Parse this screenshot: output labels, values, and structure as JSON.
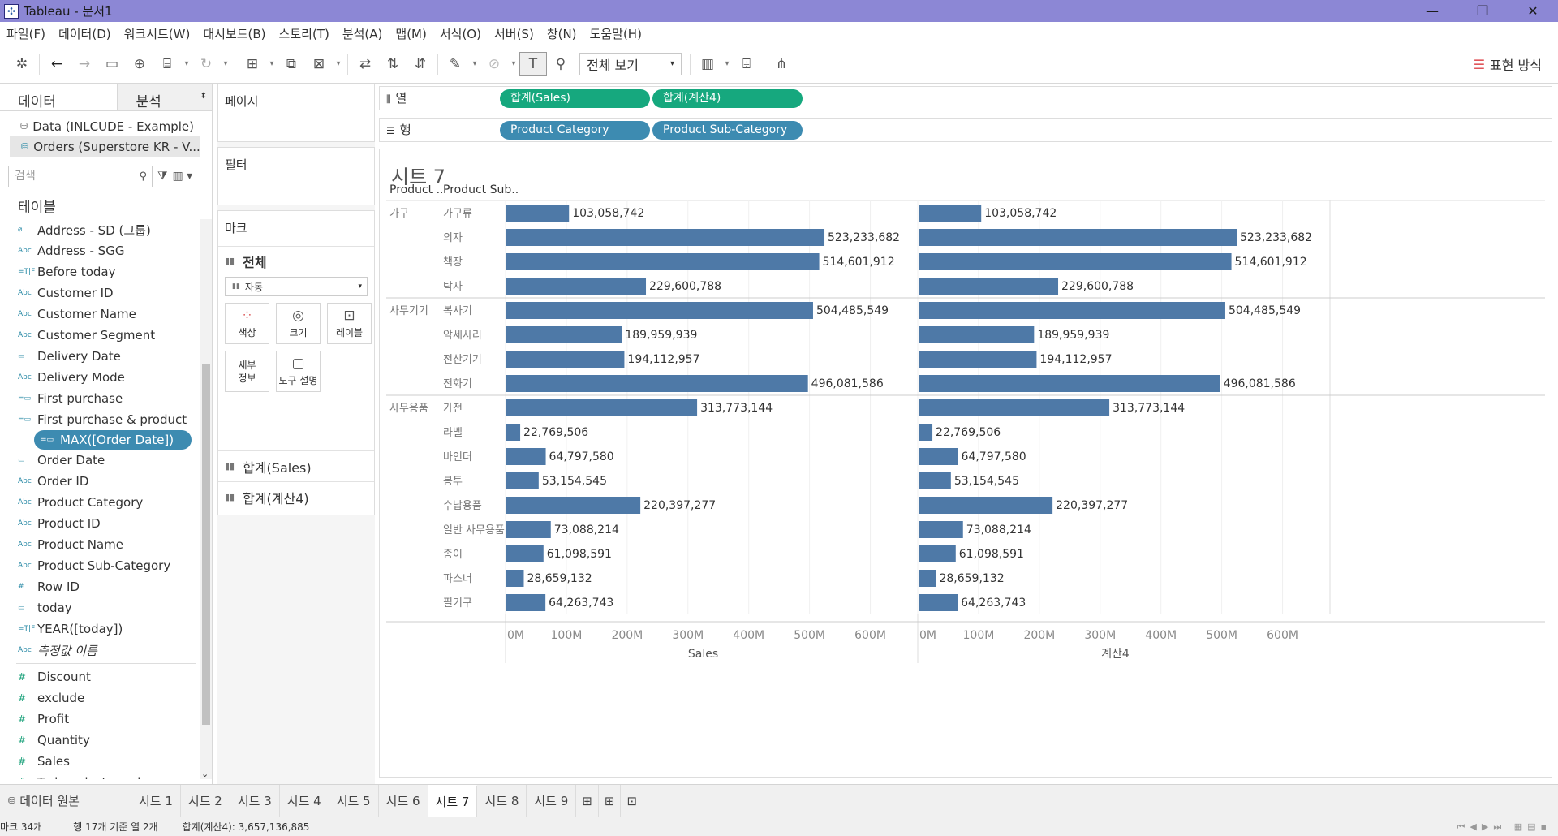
{
  "window": {
    "title": "Tableau - 문서1",
    "controls": [
      "—",
      "❐",
      "✕"
    ]
  },
  "menu": [
    "파일(F)",
    "데이터(D)",
    "워크시트(W)",
    "대시보드(B)",
    "스토리(T)",
    "분석(A)",
    "맵(M)",
    "서식(O)",
    "서버(S)",
    "창(N)",
    "도움말(H)"
  ],
  "toolbar": {
    "view_select": "전체 보기",
    "show_me": "표현 방식"
  },
  "data_pane": {
    "tab_data": "데이터",
    "tab_analysis": "분석",
    "sources": [
      "Data (INLCUDE - Example)",
      "Orders (Superstore KR - V..."
    ],
    "search_placeholder": "검색",
    "tables_label": "테이블",
    "dimensions": [
      {
        "type": "group",
        "name": "Address - SD (그룹)"
      },
      {
        "type": "abc",
        "name": "Address - SGG"
      },
      {
        "type": "bool",
        "name": "Before today"
      },
      {
        "type": "abc",
        "name": "Customer ID"
      },
      {
        "type": "abc",
        "name": "Customer Name"
      },
      {
        "type": "abc",
        "name": "Customer Segment"
      },
      {
        "type": "date",
        "name": "Delivery Date"
      },
      {
        "type": "abc",
        "name": "Delivery Mode"
      },
      {
        "type": "calc",
        "name": "First purchase"
      },
      {
        "type": "calc",
        "name": "First purchase & product"
      },
      {
        "type": "calc",
        "name": "MAX([Order Date])",
        "highlight": true
      },
      {
        "type": "date",
        "name": "Order Date"
      },
      {
        "type": "abc",
        "name": "Order ID"
      },
      {
        "type": "abc",
        "name": "Product Category"
      },
      {
        "type": "abc",
        "name": "Product ID"
      },
      {
        "type": "abc",
        "name": "Product Name"
      },
      {
        "type": "abc",
        "name": "Product Sub-Category"
      },
      {
        "type": "num",
        "name": "Row ID"
      },
      {
        "type": "date",
        "name": "today"
      },
      {
        "type": "bool",
        "name": "YEAR([today])"
      },
      {
        "type": "abc",
        "name": "측정값 이름",
        "italic": true
      }
    ],
    "measures": [
      "Discount",
      "exclude",
      "Profit",
      "Quantity",
      "Sales",
      "Today - last purchase"
    ]
  },
  "pages_label": "페이지",
  "filters_label": "필터",
  "marks": {
    "label": "마크",
    "all": "전체",
    "type": "자동",
    "buttons": [
      "색상",
      "크기",
      "레이블",
      "세부\n정보",
      "도구 설명"
    ],
    "cards": [
      "합계(Sales)",
      "합계(계산4)"
    ]
  },
  "shelves": {
    "columns_label": "열",
    "rows_label": "행",
    "columns": [
      "합계(Sales)",
      "합계(계산4)"
    ],
    "rows": [
      "Product Category",
      "Product Sub-Category"
    ]
  },
  "sheet": {
    "title": "시트 7",
    "col_header_1": "Product ..",
    "col_header_2": "Product Sub.."
  },
  "chart_data": {
    "type": "bar",
    "orientation": "horizontal",
    "groups": [
      {
        "category": "가구",
        "items": [
          {
            "sub": "가구류",
            "value": 103058742,
            "label": "103,058,742"
          },
          {
            "sub": "의자",
            "value": 523233682,
            "label": "523,233,682"
          },
          {
            "sub": "책장",
            "value": 514601912,
            "label": "514,601,912"
          },
          {
            "sub": "탁자",
            "value": 229600788,
            "label": "229,600,788"
          }
        ]
      },
      {
        "category": "사무기기",
        "items": [
          {
            "sub": "복사기",
            "value": 504485549,
            "label": "504,485,549"
          },
          {
            "sub": "악세사리",
            "value": 189959939,
            "label": "189,959,939"
          },
          {
            "sub": "전산기기",
            "value": 194112957,
            "label": "194,112,957"
          },
          {
            "sub": "전화기",
            "value": 496081586,
            "label": "496,081,586"
          }
        ]
      },
      {
        "category": "사무용품",
        "items": [
          {
            "sub": "가전",
            "value": 313773144,
            "label": "313,773,144"
          },
          {
            "sub": "라벨",
            "value": 22769506,
            "label": "22,769,506"
          },
          {
            "sub": "바인더",
            "value": 64797580,
            "label": "64,797,580"
          },
          {
            "sub": "봉투",
            "value": 53154545,
            "label": "53,154,545"
          },
          {
            "sub": "수납용품",
            "value": 220397277,
            "label": "220,397,277"
          },
          {
            "sub": "일반 사무용품",
            "value": 73088214,
            "label": "73,088,214"
          },
          {
            "sub": "종이",
            "value": 61098591,
            "label": "61,098,591"
          },
          {
            "sub": "파스너",
            "value": 28659132,
            "label": "28,659,132"
          },
          {
            "sub": "필기구",
            "value": 64263743,
            "label": "64,263,743"
          }
        ]
      }
    ],
    "panels": [
      {
        "xlabel": "Sales"
      },
      {
        "xlabel": "계산4"
      }
    ],
    "xlim": [
      0,
      650000000
    ],
    "ticks": [
      {
        "v": 0,
        "t": "0M"
      },
      {
        "v": 100000000,
        "t": "100M"
      },
      {
        "v": 200000000,
        "t": "200M"
      },
      {
        "v": 300000000,
        "t": "300M"
      },
      {
        "v": 400000000,
        "t": "400M"
      },
      {
        "v": 500000000,
        "t": "500M"
      },
      {
        "v": 600000000,
        "t": "600M"
      }
    ],
    "bar_color": "#4e79a7",
    "grid": true
  },
  "sheet_tabs": {
    "source": "데이터 원본",
    "sheets": [
      "시트 1",
      "시트 2",
      "시트 3",
      "시트 4",
      "시트 5",
      "시트 6",
      "시트 7",
      "시트 8",
      "시트 9"
    ],
    "active": "시트 7"
  },
  "status": {
    "marks": "마크 34개",
    "rows_cols": "행 17개 기준 열 2개",
    "sum": "합계(계산4): 3,657,136,885"
  }
}
